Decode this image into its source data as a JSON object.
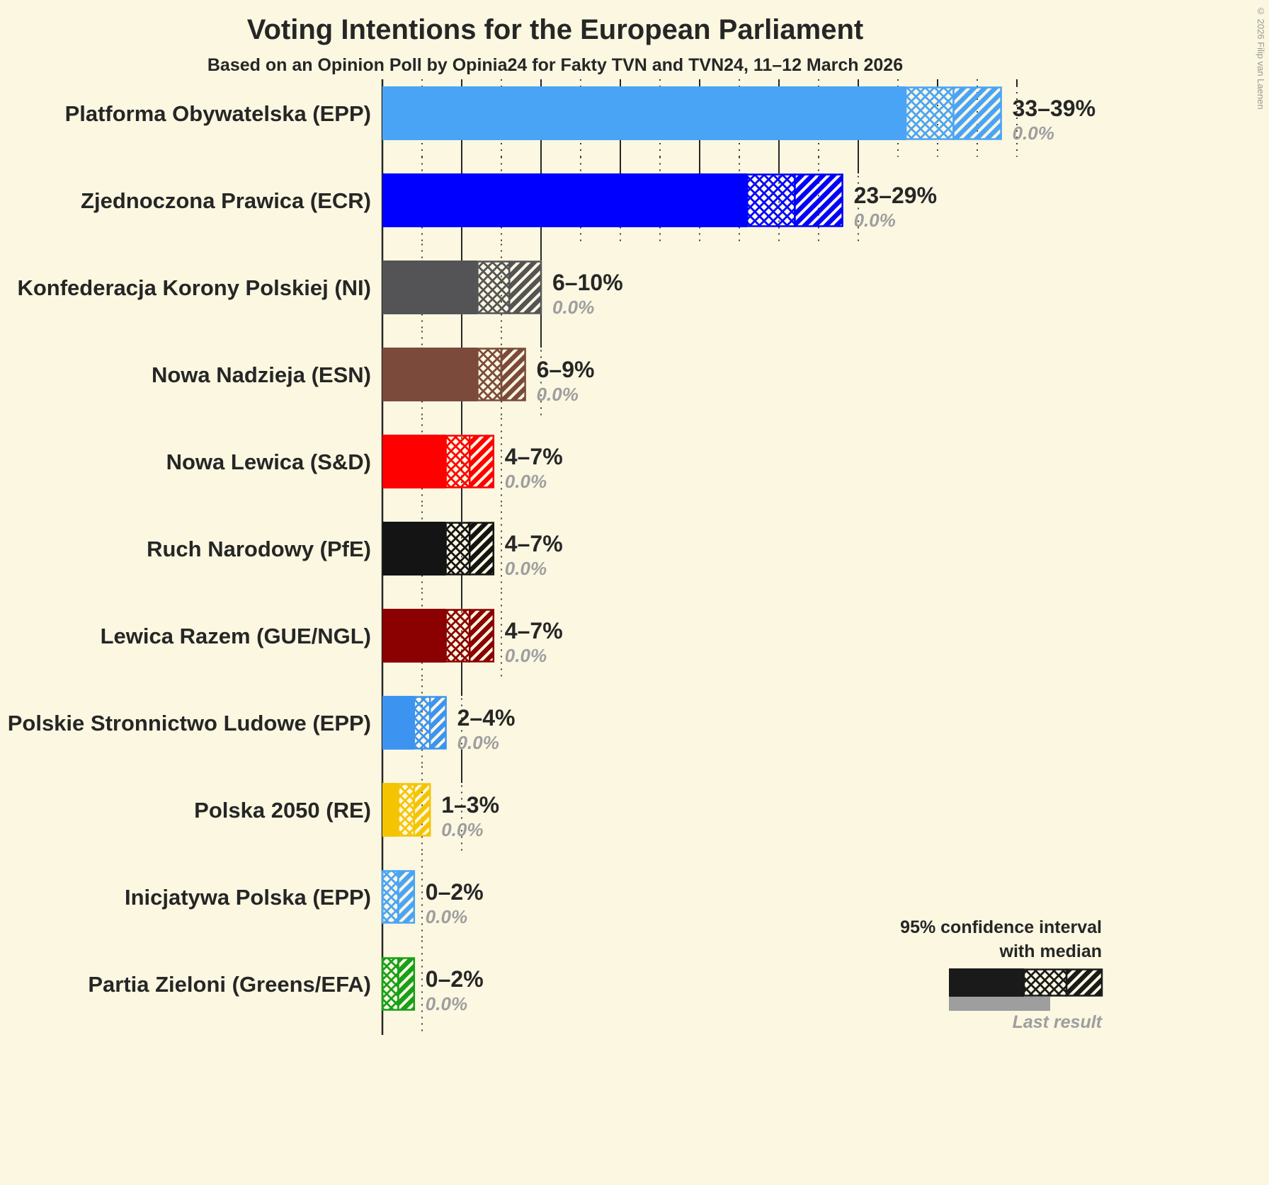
{
  "copyright": "© 2026 Filip van Laenen",
  "legend": {
    "ci_line1": "95% confidence interval",
    "ci_line2": "with median",
    "last_result": "Last result"
  },
  "chart_data": {
    "type": "bar",
    "orientation": "horizontal",
    "title": "Voting Intentions for the European Parliament",
    "subtitle": "Based on an Opinion Poll by Opinia24 for Fakty TVN and TVN24, 11–12 March 2026",
    "unit": "%",
    "x_max": 40,
    "grid_step": 2.5,
    "legend_color": "#1a1a1a",
    "last_result_color": "#9e9e9e",
    "parties": [
      {
        "label": "Platforma Obywatelska (EPP)",
        "low": 33,
        "median": 36,
        "high": 39,
        "range_label": "33–39%",
        "last_result": "0.0%",
        "color": "#4aa4f5"
      },
      {
        "label": "Zjednoczona Prawica (ECR)",
        "low": 23,
        "median": 26,
        "high": 29,
        "range_label": "23–29%",
        "last_result": "0.0%",
        "color": "#0000ff"
      },
      {
        "label": "Konfederacja Korony Polskiej (NI)",
        "low": 6,
        "median": 8,
        "high": 10,
        "range_label": "6–10%",
        "last_result": "0.0%",
        "color": "#545456"
      },
      {
        "label": "Nowa Nadzieja (ESN)",
        "low": 6,
        "median": 7.5,
        "high": 9,
        "range_label": "6–9%",
        "last_result": "0.0%",
        "color": "#7b4a3b"
      },
      {
        "label": "Nowa Lewica (S&D)",
        "low": 4,
        "median": 5.5,
        "high": 7,
        "range_label": "4–7%",
        "last_result": "0.0%",
        "color": "#ff0000"
      },
      {
        "label": "Ruch Narodowy (PfE)",
        "low": 4,
        "median": 5.5,
        "high": 7,
        "range_label": "4–7%",
        "last_result": "0.0%",
        "color": "#141414"
      },
      {
        "label": "Lewica Razem (GUE/NGL)",
        "low": 4,
        "median": 5.5,
        "high": 7,
        "range_label": "4–7%",
        "last_result": "0.0%",
        "color": "#8b0000"
      },
      {
        "label": "Polskie Stronnictwo Ludowe (EPP)",
        "low": 2,
        "median": 3,
        "high": 4,
        "range_label": "2–4%",
        "last_result": "0.0%",
        "color": "#3d94f0"
      },
      {
        "label": "Polska 2050 (RE)",
        "low": 1,
        "median": 2,
        "high": 3,
        "range_label": "1–3%",
        "last_result": "0.0%",
        "color": "#f5c400"
      },
      {
        "label": "Inicjatywa Polska (EPP)",
        "low": 0,
        "median": 1,
        "high": 2,
        "range_label": "0–2%",
        "last_result": "0.0%",
        "color": "#4aa4f5"
      },
      {
        "label": "Partia Zieloni (Greens/EFA)",
        "low": 0,
        "median": 1,
        "high": 2,
        "range_label": "0–2%",
        "last_result": "0.0%",
        "color": "#18a018"
      }
    ]
  }
}
